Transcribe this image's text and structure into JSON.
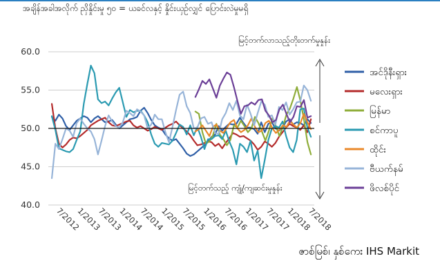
{
  "title": "အချိန်အခါအလိုက် ညှိနှိုင်းမှု ၅၀ = ယခင်လနှင့် နှိုင်းယှဉ်လျှင် ပြောင်းလဲမှုမရှိ",
  "source": "ဇာစ်မြစ်၊ နှစ်ကေး IHS Markit",
  "annotation_up": "မြင့်တက်လာသည့်တိုးတက်မှုနှုန်း",
  "annotation_down": "မြင့်တက်သည့် ကျုံ့/ကျဆင်းမှုနှုန်း",
  "colors": {
    "myanmar_lbl": "#2f5fa7",
    "malaysia": "#b42b2b",
    "myanmar": "#8fad3a",
    "singapore": "#2a9ab1",
    "thailand": "#e9882a",
    "vietnam": "#97b4d8",
    "philippines": "#6b3f97"
  },
  "chart_data": {
    "type": "line",
    "ylim": [
      40,
      60
    ],
    "yticks": [
      "40.0",
      "45.0",
      "50.0",
      "55.0",
      "60.0"
    ],
    "xlim": [
      2012.25,
      2018.58
    ],
    "xticks": [
      {
        "label": "7/2012",
        "x": 2012.5
      },
      {
        "label": "1/2013",
        "x": 2013.0
      },
      {
        "label": "7/2013",
        "x": 2013.5
      },
      {
        "label": "1/2014",
        "x": 2014.0
      },
      {
        "label": "7/2014",
        "x": 2014.5
      },
      {
        "label": "1/2015",
        "x": 2015.0
      },
      {
        "label": "7/2015",
        "x": 2015.5
      },
      {
        "label": "1/2016",
        "x": 2016.0
      },
      {
        "label": "7/2016",
        "x": 2016.5
      },
      {
        "label": "1/2017",
        "x": 2017.0
      },
      {
        "label": "7/2017",
        "x": 2017.5
      },
      {
        "label": "1/2018",
        "x": 2018.0
      },
      {
        "label": "7/2018",
        "x": 2018.5
      }
    ],
    "reference_line": 50,
    "gridlines": true,
    "legend_position": "right",
    "series": [
      {
        "key": "indonesia",
        "name": "အင်ဒိုနီးရှား",
        "color": "#2f5fa7",
        "x_start": 2012.333,
        "x_end": 2018.5,
        "values": [
          51.5,
          51.0,
          51.8,
          51.3,
          50.3,
          49.8,
          50.4,
          51.0,
          51.3,
          51.6,
          51.4,
          50.8,
          51.3,
          51.6,
          51.2,
          50.8,
          50.9,
          51.1,
          50.5,
          50.0,
          50.4,
          50.8,
          51.2,
          51.3,
          51.5,
          52.3,
          52.7,
          52.0,
          51.1,
          50.4,
          50.1,
          49.9,
          49.2,
          48.7,
          48.4,
          48.6,
          48.0,
          47.4,
          46.7,
          46.4,
          46.6,
          47.0,
          47.4,
          47.8,
          48.3,
          48.9,
          49.2,
          50.3,
          49.7,
          50.2,
          50.6,
          50.5,
          50.6,
          51.4,
          50.7,
          50.1,
          50.1,
          49.9,
          49.3,
          50.8,
          49.5,
          50.6,
          50.8,
          50.0,
          49.7,
          50.1,
          50.9,
          51.2,
          50.5,
          50.8,
          50.7,
          50.4,
          51.2,
          50.7
        ]
      },
      {
        "key": "malaysia",
        "name": "မလေးရှား",
        "color": "#b42b2b",
        "x_start": 2012.333,
        "x_end": 2018.5,
        "values": [
          53.2,
          50.0,
          48.0,
          47.5,
          47.9,
          48.5,
          48.8,
          48.7,
          49.0,
          49.4,
          49.8,
          50.4,
          50.7,
          51.0,
          51.2,
          51.4,
          50.8,
          50.4,
          50.3,
          50.5,
          50.7,
          50.9,
          51.0,
          50.4,
          50.1,
          50.3,
          50.0,
          49.7,
          49.9,
          50.2,
          50.0,
          49.8,
          50.1,
          50.4,
          50.6,
          50.9,
          50.4,
          50.0,
          49.6,
          49.1,
          48.4,
          47.8,
          47.9,
          48.1,
          48.3,
          48.2,
          47.7,
          48.0,
          47.4,
          48.1,
          48.7,
          49.4,
          49.2,
          48.9,
          49.0,
          48.7,
          48.4,
          47.9,
          47.2,
          47.6,
          48.3,
          48.0,
          47.6,
          48.1,
          48.9,
          49.5,
          50.1,
          50.6,
          50.3,
          50.1,
          49.8,
          50.4,
          49.5,
          51.2
        ]
      },
      {
        "key": "myanmar",
        "name": "မြန်မာ",
        "color": "#8fad3a",
        "x_start": 2015.75,
        "x_end": 2018.5,
        "values": [
          52.2,
          51.9,
          49.5,
          48.0,
          48.3,
          49.1,
          50.6,
          49.2,
          48.6,
          47.8,
          48.5,
          50.4,
          50.1,
          51.0,
          50.3,
          49.5,
          50.0,
          51.5,
          50.7,
          49.6,
          48.4,
          49.7,
          51.4,
          50.3,
          49.0,
          50.2,
          51.8,
          52.6,
          53.9,
          55.4,
          53.6,
          51.2,
          48.2,
          46.6
        ]
      },
      {
        "key": "singapore",
        "name": "စင်ကာပူ",
        "color": "#2a9ab1",
        "x_start": 2012.333,
        "x_end": 2018.5,
        "values": [
          51.6,
          49.8,
          47.4,
          47.2,
          47.0,
          46.9,
          47.3,
          48.5,
          49.6,
          53.2,
          55.8,
          58.2,
          57.2,
          53.8,
          53.3,
          53.5,
          53.0,
          53.9,
          54.7,
          55.3,
          53.4,
          51.5,
          52.4,
          52.1,
          52.3,
          52.3,
          51.7,
          50.8,
          49.2,
          48.0,
          47.6,
          48.1,
          48.0,
          47.9,
          48.4,
          49.4,
          50.5,
          50.2,
          49.2,
          50.4,
          49.1,
          50.2,
          48.9,
          47.3,
          48.6,
          48.6,
          49.0,
          49.1,
          48.6,
          49.7,
          48.3,
          47.2,
          45.3,
          48.0,
          47.6,
          46.9,
          48.4,
          45.8,
          47.1,
          43.5,
          45.9,
          48.5,
          50.0,
          50.3,
          50.1,
          50.9,
          49.0,
          47.5,
          46.9,
          48.5,
          52.5,
          52.6,
          50.1,
          48.9
        ]
      },
      {
        "key": "thailand",
        "name": "ထိုင်း",
        "color": "#e9882a",
        "x_start": 2015.75,
        "x_end": 2018.5,
        "values": [
          49.6,
          49.9,
          50.4,
          49.7,
          49.0,
          50.2,
          50.5,
          49.7,
          49.4,
          50.1,
          50.8,
          51.1,
          50.0,
          49.5,
          49.8,
          50.4,
          51.3,
          50.2,
          49.5,
          49.7,
          50.7,
          51.0,
          50.0,
          49.4,
          49.8,
          50.4,
          50.2,
          51.0,
          50.5,
          50.1,
          50.7,
          51.9,
          50.8,
          49.9
        ]
      },
      {
        "key": "vietnam",
        "name": "ဗီယက်နမ်",
        "color": "#97b4d8",
        "x_start": 2012.333,
        "x_end": 2018.5,
        "values": [
          43.5,
          48.0,
          47.3,
          48.6,
          50.0,
          49.7,
          48.9,
          50.7,
          51.3,
          50.6,
          50.0,
          49.6,
          48.6,
          46.6,
          48.4,
          50.3,
          51.7,
          50.9,
          50.3,
          50.1,
          50.8,
          52.3,
          52.0,
          51.6,
          52.5,
          52.2,
          51.7,
          50.0,
          50.5,
          51.8,
          51.2,
          51.2,
          49.5,
          48.2,
          50.2,
          52.4,
          54.4,
          54.8,
          52.9,
          52.0,
          50.0,
          50.1,
          51.3,
          51.5,
          50.6,
          50.8,
          49.4,
          49.3,
          51.2,
          52.0,
          53.3,
          52.4,
          53.6,
          51.7,
          51.2,
          53.1,
          51.9,
          50.4,
          52.0,
          53.5,
          53.1,
          51.5,
          51.7,
          50.5,
          52.8,
          52.4,
          53.4,
          51.8,
          52.5,
          53.4,
          53.5,
          55.6,
          55.0,
          53.6
        ]
      },
      {
        "key": "philippines",
        "name": "ဖိလစ်ပိုင်",
        "color": "#6b3f97",
        "x_start": 2015.75,
        "x_end": 2018.5,
        "values": [
          54.1,
          55.1,
          56.2,
          55.8,
          56.4,
          55.2,
          54.0,
          55.6,
          56.5,
          57.3,
          57.0,
          55.4,
          53.6,
          51.9,
          52.9,
          53.0,
          53.4,
          53.1,
          53.7,
          53.8,
          52.3,
          51.7,
          50.8,
          51.1,
          52.5,
          53.1,
          51.9,
          50.8,
          51.5,
          52.9,
          52.8,
          53.7,
          51.4,
          51.6
        ]
      }
    ]
  }
}
